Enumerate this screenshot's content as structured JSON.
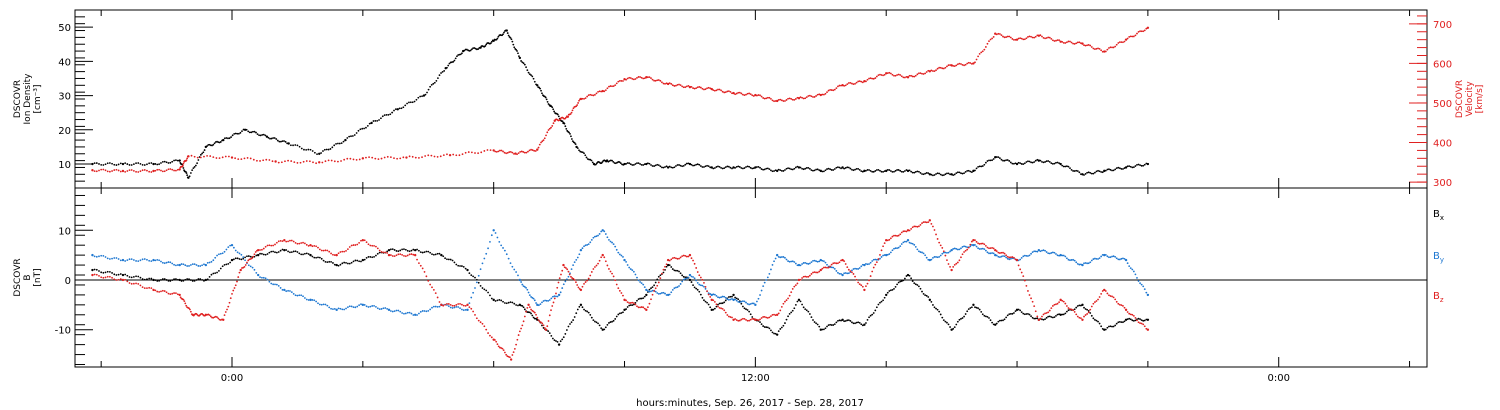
{
  "xlabel": "hours:minutes, Sep. 26, 2017 - Sep. 28, 2017",
  "chart_data": [
    {
      "type": "scatter",
      "panel": "top",
      "left_axis": {
        "label_lines": [
          "DSCOVR",
          "Ion Density",
          "[cm⁻³]"
        ],
        "ylim": [
          3,
          55
        ],
        "ticks": [
          10,
          20,
          30,
          40,
          50
        ],
        "color": "#000000"
      },
      "right_axis": {
        "label_lines": [
          "DSCOVR",
          "Velocity",
          "[km/s]"
        ],
        "ylim": [
          285,
          735
        ],
        "ticks": [
          300,
          400,
          500,
          600,
          700
        ],
        "color": "#e02020"
      },
      "x_ticks": [
        "0:00",
        "12:00",
        "0:00"
      ],
      "series": [
        {
          "axis": "left",
          "color": "#000000",
          "x": [
            -3.2,
            -2.5,
            -1.8,
            -1.2,
            -1.0,
            -0.6,
            -0.2,
            0.3,
            0.8,
            1.3,
            2.0,
            2.6,
            3.2,
            3.8,
            4.4,
            4.9,
            5.3,
            5.7,
            6.0,
            6.3,
            6.6,
            7.0,
            7.3,
            7.6,
            7.9,
            8.3,
            8.6,
            9.0,
            9.5,
            10.0,
            10.5,
            11.0,
            11.5,
            12.0,
            12.5,
            13.0,
            13.5,
            14.0,
            14.5,
            15.0,
            15.5,
            16.0,
            16.5,
            17.0,
            17.5,
            18.0,
            18.5,
            19.0,
            19.5,
            20.0,
            20.5,
            21.0
          ],
          "y": [
            10,
            10,
            10,
            11,
            6,
            15,
            17,
            20,
            18,
            16,
            13,
            17,
            22,
            26,
            30,
            38,
            43,
            44,
            46,
            49,
            41,
            33,
            27,
            22,
            15,
            10,
            11,
            10,
            10,
            9,
            10,
            9,
            9,
            9,
            8,
            9,
            8,
            9,
            8,
            8,
            8,
            7,
            7,
            8,
            12,
            10,
            11,
            10,
            7,
            8,
            9,
            10
          ]
        },
        {
          "axis": "right",
          "color": "#e02020",
          "x": [
            -3.2,
            -2.5,
            -1.8,
            -1.2,
            -1.0,
            0.0,
            1.0,
            2.0,
            3.0,
            4.0,
            5.0,
            6.0,
            6.5,
            7.0,
            7.4,
            7.7,
            8.0,
            8.5,
            9.0,
            9.5,
            10.0,
            10.5,
            11.0,
            11.5,
            12.0,
            12.5,
            13.0,
            13.5,
            14.0,
            14.5,
            15.0,
            15.5,
            16.0,
            16.5,
            17.0,
            17.5,
            18.0,
            18.5,
            19.0,
            19.5,
            20.0,
            20.5,
            21.0
          ],
          "y": [
            330,
            328,
            328,
            332,
            365,
            362,
            352,
            350,
            360,
            362,
            368,
            380,
            372,
            382,
            455,
            465,
            510,
            530,
            560,
            565,
            548,
            540,
            535,
            525,
            520,
            505,
            512,
            520,
            545,
            555,
            575,
            565,
            580,
            595,
            600,
            675,
            660,
            670,
            655,
            650,
            630,
            660,
            690
          ]
        }
      ]
    },
    {
      "type": "scatter",
      "panel": "bottom",
      "left_axis": {
        "label_lines": [
          "DSCOVR",
          "B",
          "[nT]"
        ],
        "ylim": [
          -17.5,
          18.5
        ],
        "ticks": [
          -10,
          0,
          10
        ],
        "color": "#000000"
      },
      "x_ticks": [
        "0:00",
        "12:00",
        "0:00"
      ],
      "legend_position": "right",
      "series": [
        {
          "name": "Bx",
          "color": "#000000",
          "x": [
            -3.2,
            -2.5,
            -1.8,
            -1.2,
            -0.6,
            0.0,
            0.6,
            1.2,
            1.8,
            2.4,
            3.0,
            3.6,
            4.2,
            4.8,
            5.4,
            6.0,
            6.6,
            7.0,
            7.5,
            8.0,
            8.5,
            9.0,
            9.5,
            10.0,
            10.5,
            11.0,
            11.5,
            12.0,
            12.5,
            13.0,
            13.5,
            14.0,
            14.5,
            15.0,
            15.5,
            16.0,
            16.5,
            17.0,
            17.5,
            18.0,
            18.5,
            19.0,
            19.5,
            20.0,
            20.5,
            21.0
          ],
          "y": [
            2,
            1,
            0,
            0,
            0,
            4,
            5,
            6,
            5,
            3,
            4,
            6,
            6,
            5,
            2,
            -4,
            -5,
            -8,
            -13,
            -5,
            -10,
            -6,
            -3,
            3,
            0,
            -6,
            -3,
            -8,
            -11,
            -4,
            -10,
            -8,
            -9,
            -3,
            1,
            -4,
            -10,
            -5,
            -9,
            -6,
            -8,
            -7,
            -5,
            -10,
            -8,
            -8
          ]
        },
        {
          "name": "By",
          "color": "#1f78d1",
          "x": [
            -3.2,
            -2.5,
            -1.8,
            -1.2,
            -0.6,
            0.0,
            0.6,
            1.2,
            1.8,
            2.4,
            3.0,
            3.6,
            4.2,
            4.8,
            5.4,
            6.0,
            6.6,
            7.0,
            7.5,
            8.0,
            8.5,
            9.0,
            9.5,
            10.0,
            10.5,
            11.0,
            11.5,
            12.0,
            12.5,
            13.0,
            13.5,
            14.0,
            14.5,
            15.0,
            15.5,
            16.0,
            16.5,
            17.0,
            17.5,
            18.0,
            18.5,
            19.0,
            19.5,
            20.0,
            20.5,
            21.0
          ],
          "y": [
            5,
            4,
            4,
            3,
            3,
            7,
            1,
            -2,
            -4,
            -6,
            -5,
            -6,
            -7,
            -5,
            -6,
            10,
            0,
            -5,
            -3,
            6,
            10,
            4,
            -2,
            -3,
            1,
            -3,
            -4,
            -5,
            5,
            3,
            4,
            1,
            3,
            5,
            8,
            4,
            6,
            7,
            5,
            4,
            6,
            5,
            3,
            5,
            4,
            -3
          ]
        },
        {
          "name": "Bz",
          "color": "#e02020",
          "x": [
            -3.2,
            -2.5,
            -1.8,
            -1.2,
            -0.9,
            -0.6,
            -0.2,
            0.2,
            0.6,
            1.2,
            1.8,
            2.4,
            3.0,
            3.6,
            4.2,
            4.8,
            5.4,
            6.0,
            6.4,
            6.8,
            7.2,
            7.6,
            8.0,
            8.5,
            9.0,
            9.5,
            10.0,
            10.5,
            11.0,
            11.5,
            12.0,
            12.5,
            13.0,
            13.5,
            14.0,
            14.5,
            15.0,
            15.5,
            16.0,
            16.5,
            17.0,
            17.5,
            18.0,
            18.5,
            19.0,
            19.5,
            20.0,
            20.5,
            21.0
          ],
          "y": [
            1,
            0,
            -2,
            -3,
            -7,
            -7,
            -8,
            2,
            6,
            8,
            7,
            5,
            8,
            5,
            5,
            -5,
            -5,
            -12,
            -16,
            -5,
            -10,
            3,
            -2,
            5,
            -4,
            -6,
            4,
            5,
            -4,
            -8,
            -8,
            -7,
            0,
            2,
            4,
            -2,
            8,
            10,
            12,
            2,
            8,
            6,
            4,
            -8,
            -4,
            -8,
            -2,
            -6,
            -10
          ]
        }
      ]
    }
  ]
}
